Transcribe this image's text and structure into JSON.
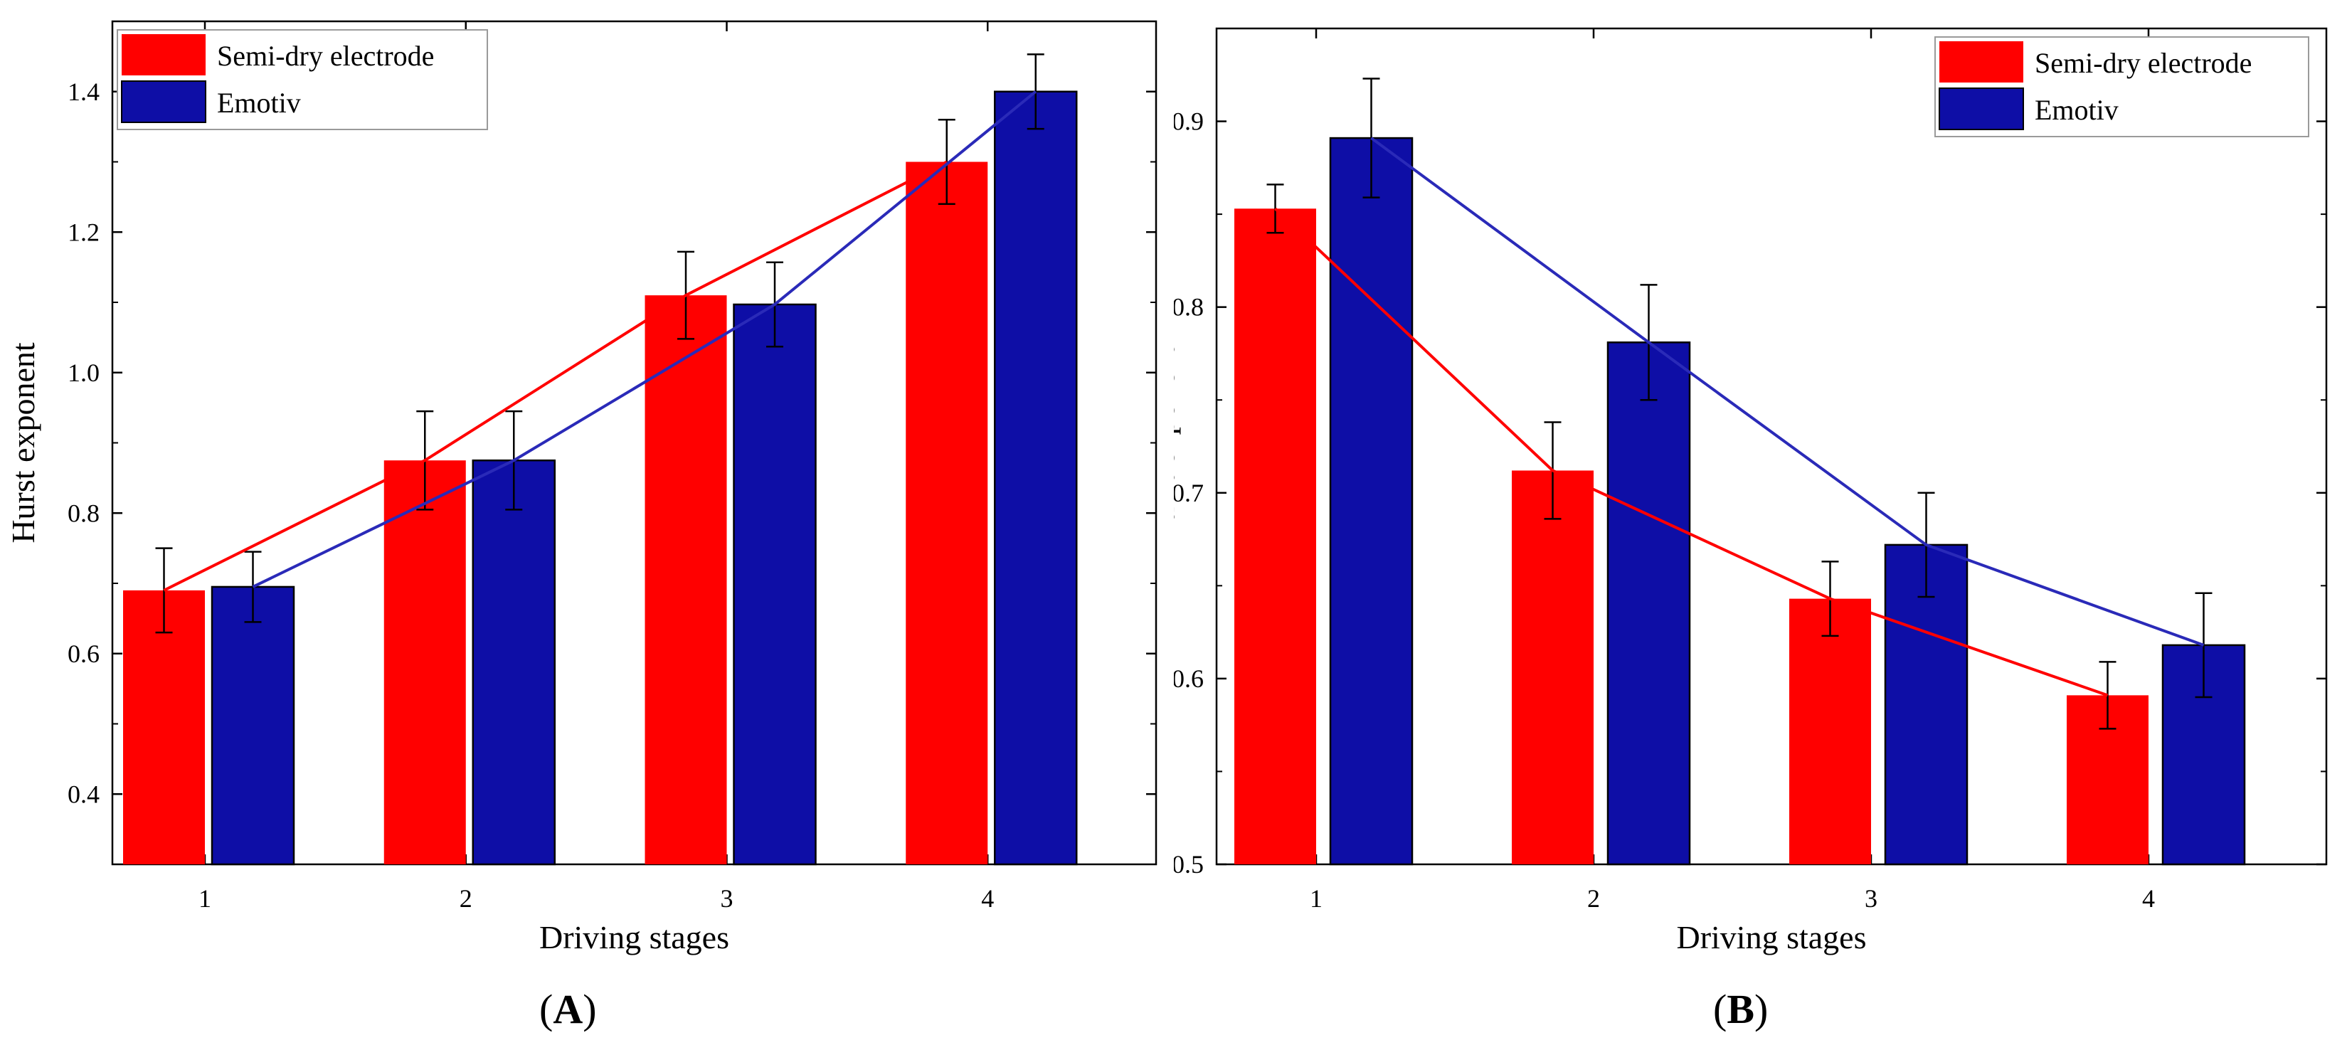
{
  "panels": [
    {
      "label_open": "(",
      "label_letter": "A",
      "label_close": ")"
    },
    {
      "label_open": "(",
      "label_letter": "B",
      "label_close": ")"
    }
  ],
  "chart_data": [
    {
      "type": "bar",
      "title": "",
      "xlabel": "Driving stages",
      "ylabel": "Hurst exponent",
      "categories": [
        "1",
        "2",
        "3",
        "4"
      ],
      "ylim": [
        0.3,
        1.5
      ],
      "yticks": [
        0.4,
        0.6,
        0.8,
        1.0,
        1.2,
        1.4
      ],
      "ytick_labels": [
        "0.4",
        "0.6",
        "0.8",
        "1.0",
        "1.2",
        "1.4"
      ],
      "legend_position": "top-left",
      "trend_lines": true,
      "series": [
        {
          "name": "Semi-dry electrode",
          "color": "#ff0000",
          "values": [
            0.69,
            0.875,
            1.11,
            1.3
          ],
          "errors": [
            0.06,
            0.07,
            0.062,
            0.06
          ]
        },
        {
          "name": "Emotiv",
          "color": "#0e0ea6",
          "values": [
            0.695,
            0.875,
            1.097,
            1.4
          ],
          "errors": [
            0.05,
            0.07,
            0.06,
            0.053
          ]
        }
      ]
    },
    {
      "type": "bar",
      "title": "",
      "xlabel": "Driving stages",
      "ylabel": "Hurst exponent",
      "categories": [
        "1",
        "2",
        "3",
        "4"
      ],
      "ylim": [
        0.5,
        0.95
      ],
      "yticks": [
        0.5,
        0.6,
        0.7,
        0.8,
        0.9
      ],
      "ytick_labels": [
        "0.5",
        "0.6",
        "0.7",
        "0.8",
        "0.9"
      ],
      "legend_position": "top-right",
      "trend_lines": true,
      "series": [
        {
          "name": "Semi-dry electrode",
          "color": "#ff0000",
          "values": [
            0.853,
            0.712,
            0.643,
            0.591
          ],
          "errors": [
            0.013,
            0.026,
            0.02,
            0.018
          ]
        },
        {
          "name": "Emotiv",
          "color": "#0e0ea6",
          "values": [
            0.891,
            0.781,
            0.672,
            0.618
          ],
          "errors": [
            0.032,
            0.031,
            0.028,
            0.028
          ]
        }
      ]
    }
  ]
}
